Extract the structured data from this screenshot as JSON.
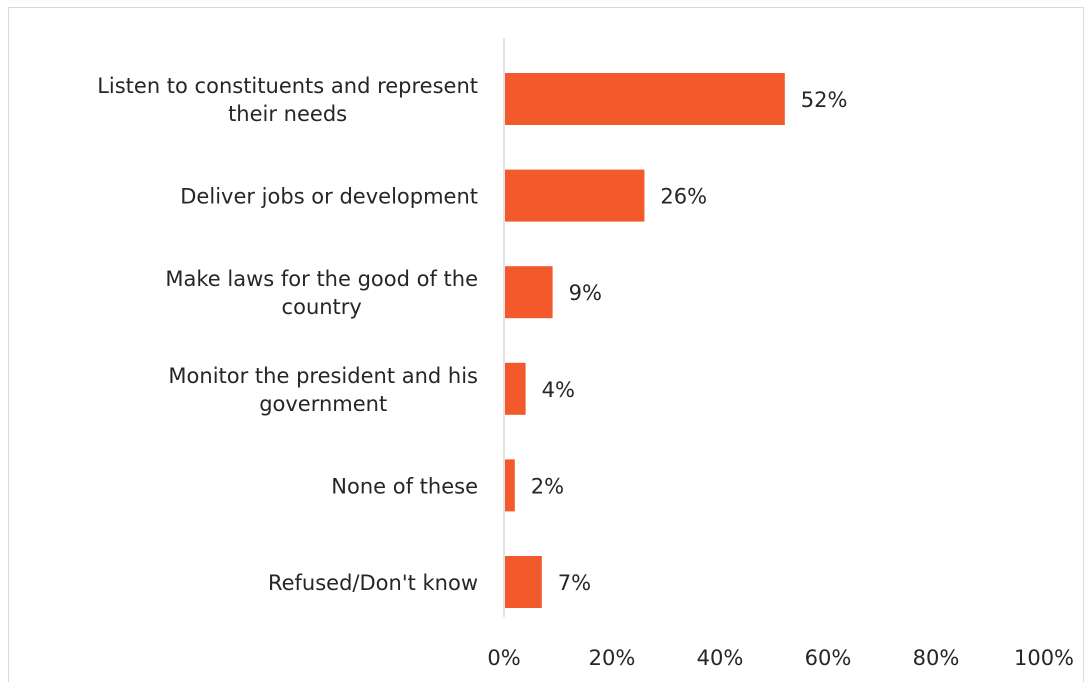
{
  "chart_data": {
    "type": "bar",
    "orientation": "horizontal",
    "title": "",
    "xlabel": "",
    "ylabel": "",
    "categories": [
      [
        "Listen to constituents and represent",
        "their needs"
      ],
      [
        "Deliver jobs or development"
      ],
      [
        "Make laws for the good of the",
        "country"
      ],
      [
        "Monitor the president and his",
        "government"
      ],
      [
        "None of these"
      ],
      [
        "Refused/Don't know"
      ]
    ],
    "values": [
      52,
      26,
      9,
      4,
      2,
      7
    ],
    "data_labels": [
      "52%",
      "26%",
      "9%",
      "4%",
      "2%",
      "7%"
    ],
    "xlim": [
      0,
      100
    ],
    "x_ticks": [
      0,
      20,
      40,
      60,
      80,
      100
    ],
    "x_tick_labels": [
      "0%",
      "20%",
      "40%",
      "60%",
      "80%",
      "100%"
    ],
    "grid": false,
    "legend": "none",
    "bar_color": "#f25a2c",
    "axis_color": "#d9d9d9"
  }
}
